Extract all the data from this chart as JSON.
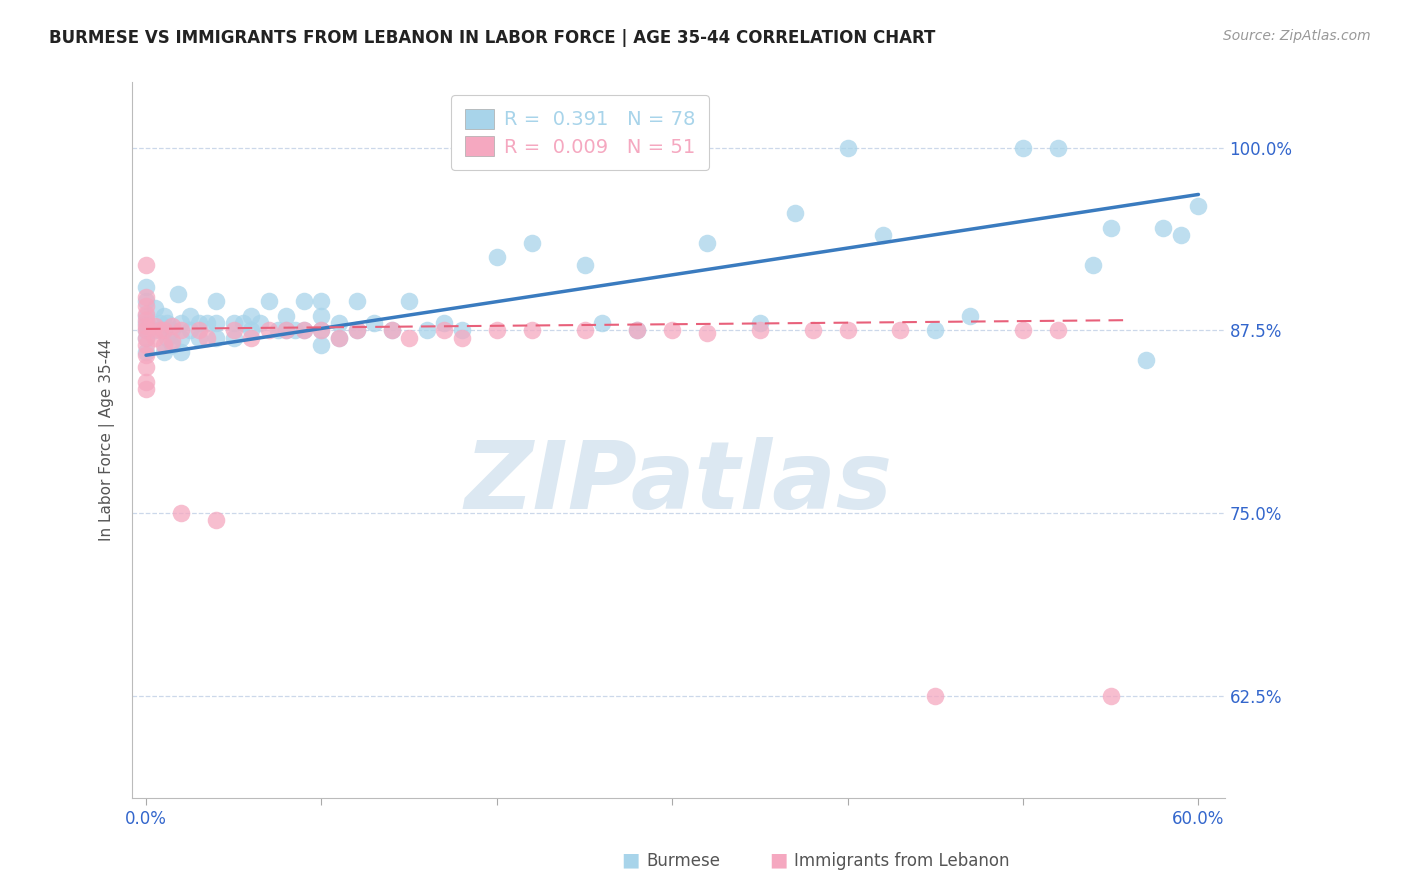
{
  "title": "BURMESE VS IMMIGRANTS FROM LEBANON IN LABOR FORCE | AGE 35-44 CORRELATION CHART",
  "source": "Source: ZipAtlas.com",
  "ylabel": "In Labor Force | Age 35-44",
  "xlim": [
    -0.008,
    0.615
  ],
  "ylim": [
    0.555,
    1.045
  ],
  "xticks": [
    0.0,
    0.1,
    0.2,
    0.3,
    0.4,
    0.5,
    0.6
  ],
  "xtick_labels": [
    "0.0%",
    "",
    "",
    "",
    "",
    "",
    "60.0%"
  ],
  "yticks": [
    0.625,
    0.75,
    0.875,
    1.0
  ],
  "ytick_labels": [
    "62.5%",
    "75.0%",
    "87.5%",
    "100.0%"
  ],
  "blue_color": "#a8d4ea",
  "pink_color": "#f5a8c0",
  "blue_line_color": "#3a7bbf",
  "pink_line_color": "#e8607a",
  "grid_color": "#ccd8ea",
  "title_color": "#222222",
  "axis_tick_color": "#3366cc",
  "blue_R": "0.391",
  "blue_N": "78",
  "pink_R": "0.009",
  "pink_N": "51",
  "blue_trend_x": [
    0.0,
    0.6
  ],
  "blue_trend_y": [
    0.858,
    0.968
  ],
  "pink_trend_x": [
    0.0,
    0.56
  ],
  "pink_trend_y": [
    0.876,
    0.882
  ],
  "watermark_text": "ZIPatlas",
  "watermark_color": "#dce8f2",
  "bottom_legend_blue": "Burmese",
  "bottom_legend_pink": "Immigrants from Lebanon",
  "blue_x": [
    0.0,
    0.0,
    0.0,
    0.0,
    0.0,
    0.0,
    0.0,
    0.005,
    0.005,
    0.008,
    0.01,
    0.01,
    0.01,
    0.012,
    0.012,
    0.015,
    0.015,
    0.018,
    0.02,
    0.02,
    0.02,
    0.025,
    0.025,
    0.03,
    0.03,
    0.035,
    0.04,
    0.04,
    0.04,
    0.05,
    0.05,
    0.055,
    0.06,
    0.06,
    0.065,
    0.07,
    0.075,
    0.08,
    0.08,
    0.085,
    0.09,
    0.09,
    0.1,
    0.1,
    0.1,
    0.1,
    0.11,
    0.11,
    0.12,
    0.12,
    0.13,
    0.14,
    0.15,
    0.16,
    0.17,
    0.18,
    0.2,
    0.22,
    0.25,
    0.26,
    0.28,
    0.3,
    0.3,
    0.32,
    0.35,
    0.37,
    0.4,
    0.42,
    0.45,
    0.47,
    0.5,
    0.52,
    0.54,
    0.55,
    0.57,
    0.58,
    0.59,
    0.6
  ],
  "blue_y": [
    0.875,
    0.885,
    0.895,
    0.905,
    0.87,
    0.86,
    0.88,
    0.875,
    0.89,
    0.88,
    0.875,
    0.885,
    0.86,
    0.88,
    0.87,
    0.875,
    0.865,
    0.9,
    0.88,
    0.87,
    0.86,
    0.885,
    0.875,
    0.88,
    0.87,
    0.88,
    0.895,
    0.88,
    0.87,
    0.88,
    0.87,
    0.88,
    0.885,
    0.875,
    0.88,
    0.895,
    0.875,
    0.885,
    0.875,
    0.875,
    0.895,
    0.875,
    0.895,
    0.885,
    0.875,
    0.865,
    0.88,
    0.87,
    0.895,
    0.875,
    0.88,
    0.875,
    0.895,
    0.875,
    0.88,
    0.875,
    0.925,
    0.935,
    0.92,
    0.88,
    0.875,
    1.0,
    1.0,
    0.935,
    0.88,
    0.955,
    1.0,
    0.94,
    0.875,
    0.885,
    1.0,
    1.0,
    0.92,
    0.945,
    0.855,
    0.945,
    0.94,
    0.96
  ],
  "pink_x": [
    0.0,
    0.0,
    0.0,
    0.0,
    0.0,
    0.0,
    0.0,
    0.0,
    0.0,
    0.0,
    0.0,
    0.0,
    0.0,
    0.005,
    0.005,
    0.008,
    0.01,
    0.01,
    0.015,
    0.015,
    0.02,
    0.02,
    0.03,
    0.035,
    0.04,
    0.05,
    0.06,
    0.07,
    0.08,
    0.09,
    0.1,
    0.11,
    0.12,
    0.14,
    0.15,
    0.17,
    0.18,
    0.2,
    0.22,
    0.25,
    0.28,
    0.3,
    0.32,
    0.35,
    0.38,
    0.4,
    0.43,
    0.45,
    0.5,
    0.52,
    0.55
  ],
  "pink_y": [
    0.92,
    0.898,
    0.892,
    0.886,
    0.882,
    0.878,
    0.875,
    0.87,
    0.865,
    0.858,
    0.85,
    0.84,
    0.835,
    0.878,
    0.87,
    0.875,
    0.875,
    0.865,
    0.878,
    0.868,
    0.875,
    0.75,
    0.875,
    0.87,
    0.745,
    0.875,
    0.87,
    0.875,
    0.875,
    0.875,
    0.875,
    0.87,
    0.875,
    0.875,
    0.87,
    0.875,
    0.87,
    0.875,
    0.875,
    0.875,
    0.875,
    0.875,
    0.873,
    0.875,
    0.875,
    0.875,
    0.875,
    0.625,
    0.875,
    0.875,
    0.625
  ]
}
